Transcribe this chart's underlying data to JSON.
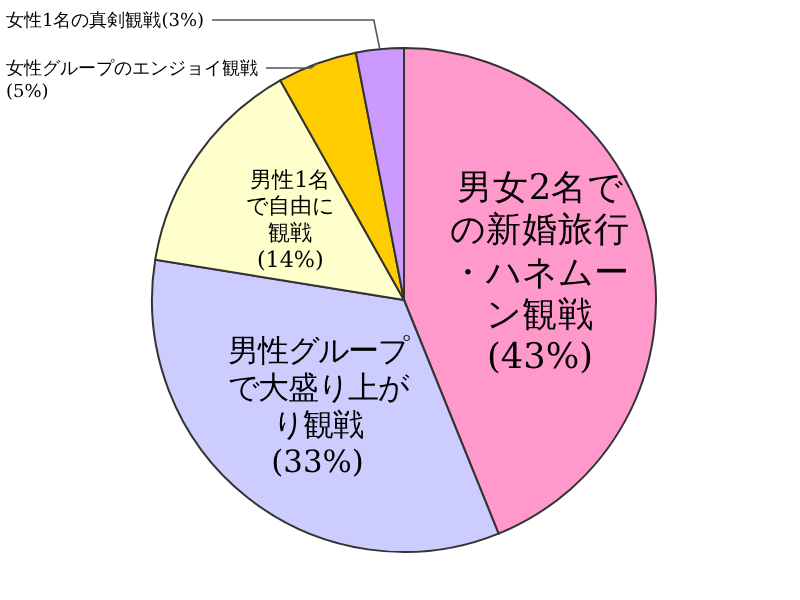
{
  "chart_data": {
    "type": "pie",
    "categories": [
      "男女2名での新婚旅行・ハネムーン観戦",
      "男性グループで大盛り上がり観戦",
      "男性1名で自由に観戦",
      "女性グループのエンジョイ観戦",
      "女性1名の真剣観戦"
    ],
    "values": [
      43,
      33,
      14,
      5,
      3
    ],
    "value_labels": [
      "(43%)",
      "(33%)",
      "(14%)",
      "(5%)",
      "(3%)"
    ],
    "colors": [
      "#ff99cc",
      "#ccccff",
      "#ffffcc",
      "#ffcc00",
      "#cc99ff"
    ]
  }
}
